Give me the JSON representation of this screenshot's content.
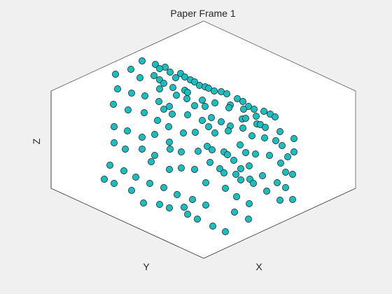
{
  "window": {
    "background": "#f0f0f0"
  },
  "chart_data": {
    "type": "scatter",
    "title": "Paper Frame 1",
    "xlabel": "X",
    "ylabel": "Y",
    "zlabel": "Z",
    "grid": false,
    "colors": {
      "marker_fill": "#1abebe",
      "marker_edge": "#1a1a1a",
      "axes_face": "#ffffff",
      "axes_edge": "#262626"
    },
    "points": [
      [
        203,
        87
      ],
      [
        187,
        99
      ],
      [
        165,
        106
      ],
      [
        222,
        92
      ],
      [
        236,
        96
      ],
      [
        243,
        103
      ],
      [
        228,
        98
      ],
      [
        258,
        105
      ],
      [
        264,
        110
      ],
      [
        220,
        108
      ],
      [
        251,
        111
      ],
      [
        272,
        114
      ],
      [
        200,
        111
      ],
      [
        228,
        114
      ],
      [
        234,
        119
      ],
      [
        278,
        117
      ],
      [
        285,
        122
      ],
      [
        293,
        124
      ],
      [
        168,
        127
      ],
      [
        188,
        133
      ],
      [
        207,
        137
      ],
      [
        247,
        125
      ],
      [
        264,
        129
      ],
      [
        268,
        132
      ],
      [
        298,
        126
      ],
      [
        306,
        130
      ],
      [
        316,
        131
      ],
      [
        324,
        134
      ],
      [
        228,
        127
      ],
      [
        252,
        136
      ],
      [
        162,
        149
      ],
      [
        183,
        157
      ],
      [
        206,
        161
      ],
      [
        227,
        145
      ],
      [
        234,
        156
      ],
      [
        267,
        141
      ],
      [
        289,
        143
      ],
      [
        307,
        147
      ],
      [
        339,
        141
      ],
      [
        347,
        145
      ],
      [
        355,
        152
      ],
      [
        363,
        156
      ],
      [
        377,
        159
      ],
      [
        386,
        163
      ],
      [
        393,
        167
      ],
      [
        242,
        152
      ],
      [
        278,
        151
      ],
      [
        293,
        152
      ],
      [
        329,
        150
      ],
      [
        327,
        154
      ],
      [
        348,
        156
      ],
      [
        366,
        166
      ],
      [
        225,
        172
      ],
      [
        246,
        163
      ],
      [
        268,
        164
      ],
      [
        289,
        172
      ],
      [
        302,
        168
      ],
      [
        316,
        174
      ],
      [
        329,
        180
      ],
      [
        346,
        170
      ],
      [
        351,
        169
      ],
      [
        367,
        177
      ],
      [
        372,
        178
      ],
      [
        379,
        182
      ],
      [
        400,
        188
      ],
      [
        163,
        181
      ],
      [
        182,
        187
      ],
      [
        203,
        196
      ],
      [
        221,
        192
      ],
      [
        241,
        181
      ],
      [
        262,
        190
      ],
      [
        279,
        189
      ],
      [
        298,
        181
      ],
      [
        307,
        190
      ],
      [
        326,
        187
      ],
      [
        347,
        183
      ],
      [
        360,
        194
      ],
      [
        378,
        197
      ],
      [
        394,
        201
      ],
      [
        420,
        198
      ],
      [
        163,
        204
      ],
      [
        179,
        213
      ],
      [
        203,
        213
      ],
      [
        221,
        222
      ],
      [
        242,
        203
      ],
      [
        243,
        213
      ],
      [
        259,
        217
      ],
      [
        283,
        216
      ],
      [
        296,
        209
      ],
      [
        303,
        214
      ],
      [
        320,
        217
      ],
      [
        325,
        221
      ],
      [
        334,
        229
      ],
      [
        343,
        207
      ],
      [
        351,
        218
      ],
      [
        365,
        220
      ],
      [
        385,
        222
      ],
      [
        403,
        208
      ],
      [
        411,
        224
      ],
      [
        420,
        217
      ],
      [
        157,
        236
      ],
      [
        177,
        244
      ],
      [
        194,
        253
      ],
      [
        216,
        231
      ],
      [
        242,
        242
      ],
      [
        259,
        240
      ],
      [
        278,
        242
      ],
      [
        300,
        232
      ],
      [
        314,
        241
      ],
      [
        320,
        247
      ],
      [
        337,
        249
      ],
      [
        344,
        241
      ],
      [
        356,
        237
      ],
      [
        357,
        256
      ],
      [
        375,
        251
      ],
      [
        401,
        233
      ],
      [
        408,
        246
      ],
      [
        418,
        249
      ],
      [
        149,
        256
      ],
      [
        163,
        262
      ],
      [
        188,
        272
      ],
      [
        214,
        262
      ],
      [
        234,
        268
      ],
      [
        253,
        278
      ],
      [
        275,
        285
      ],
      [
        294,
        261
      ],
      [
        322,
        269
      ],
      [
        338,
        281
      ],
      [
        344,
        257
      ],
      [
        362,
        262
      ],
      [
        381,
        273
      ],
      [
        396,
        261
      ],
      [
        408,
        268
      ],
      [
        418,
        285
      ],
      [
        205,
        290
      ],
      [
        228,
        292
      ],
      [
        242,
        297
      ],
      [
        263,
        296
      ],
      [
        268,
        306
      ],
      [
        282,
        313
      ],
      [
        294,
        293
      ],
      [
        304,
        323
      ],
      [
        322,
        331
      ],
      [
        335,
        303
      ],
      [
        355,
        313
      ],
      [
        356,
        291
      ],
      [
        400,
        286
      ]
    ]
  }
}
